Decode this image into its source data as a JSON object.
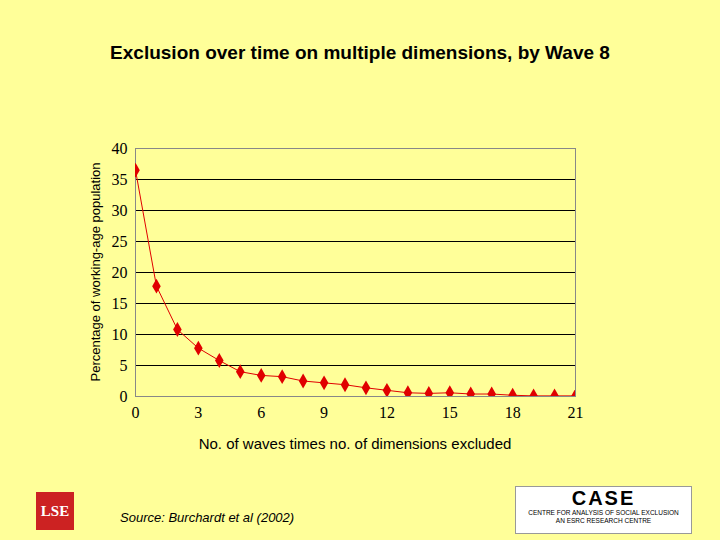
{
  "chart_data": {
    "type": "line",
    "title": "Exclusion over time on multiple dimensions, by Wave 8",
    "x_label": "No. of waves times no. of dimensions excluded",
    "y_label": "Percentage of working-age population",
    "source": "Source: Burchardt et al (2002)",
    "logos": [
      "LSE",
      "CASE",
      "Centre for Analysis of Social Exclusion",
      "An ESRC Research Centre"
    ],
    "x": [
      0,
      1,
      2,
      3,
      4,
      5,
      6,
      7,
      8,
      9,
      10,
      11,
      12,
      13,
      14,
      15,
      16,
      17,
      18,
      19,
      20,
      21
    ],
    "values": [
      36.5,
      17.8,
      10.8,
      7.8,
      5.8,
      4.0,
      3.4,
      3.2,
      2.5,
      2.2,
      1.9,
      1.4,
      1.0,
      0.6,
      0.5,
      0.6,
      0.4,
      0.4,
      0.2,
      0.1,
      0.1,
      0.1
    ],
    "color": "#e00000",
    "marker": "diamond",
    "xlim": [
      0,
      21
    ],
    "xticks": [
      0,
      3,
      6,
      9,
      12,
      15,
      18,
      21
    ],
    "ylim": [
      0,
      40
    ],
    "yticks": [
      0,
      5,
      10,
      15,
      20,
      25,
      30,
      35,
      40
    ],
    "grid": true
  }
}
